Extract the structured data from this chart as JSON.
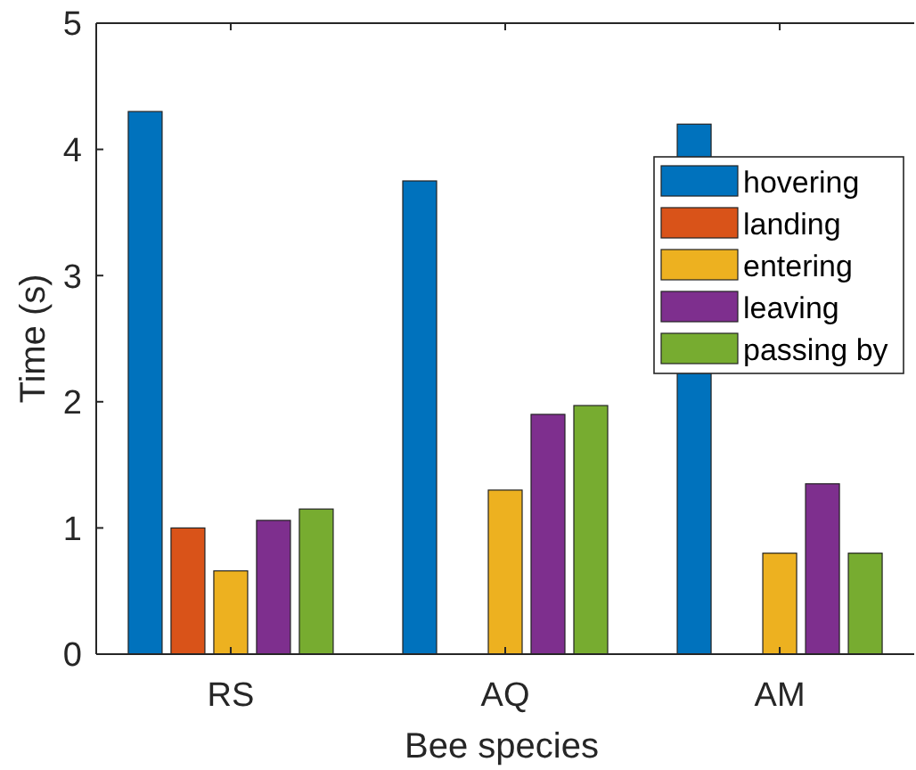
{
  "chart_data": {
    "type": "bar",
    "xlabel": "Bee species",
    "ylabel": "Time (s)",
    "categories": [
      "RS",
      "AQ",
      "AM"
    ],
    "series": [
      {
        "name": "hovering",
        "color": "#0072bd",
        "values": [
          4.3,
          3.75,
          4.2
        ]
      },
      {
        "name": "landing",
        "color": "#d95319",
        "values": [
          1.0,
          0,
          0
        ]
      },
      {
        "name": "entering",
        "color": "#edb120",
        "values": [
          0.66,
          1.3,
          0.8
        ]
      },
      {
        "name": "leaving",
        "color": "#7e2f8e",
        "values": [
          1.06,
          1.9,
          1.35
        ]
      },
      {
        "name": "passing by",
        "color": "#77ac30",
        "values": [
          1.15,
          1.97,
          0.8
        ]
      }
    ],
    "ylim": [
      0,
      5
    ],
    "yticks": [
      0,
      1,
      2,
      3,
      4,
      5
    ],
    "grid": false,
    "legend": "top right"
  }
}
